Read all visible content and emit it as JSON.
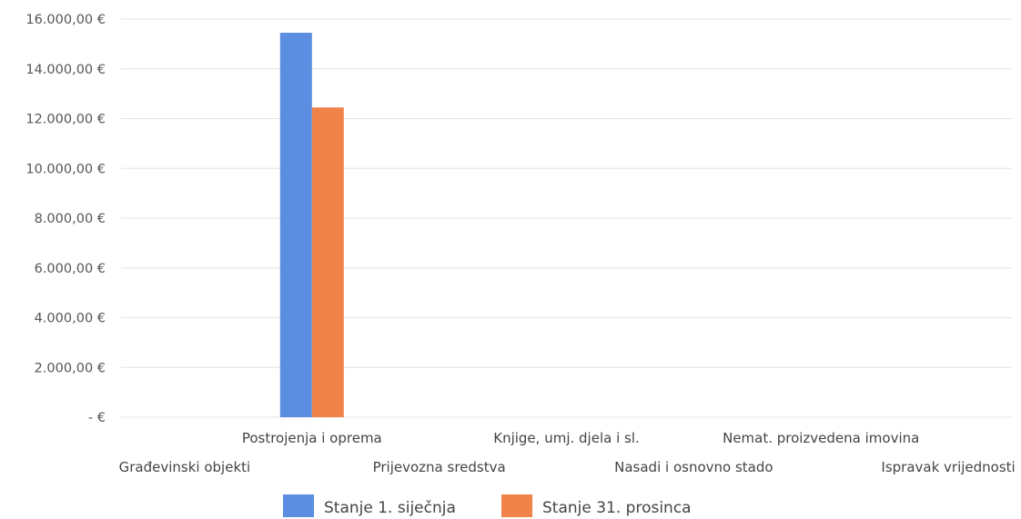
{
  "chart_data": {
    "type": "bar",
    "title": "",
    "xlabel": "",
    "ylabel": "",
    "ylim": [
      0,
      16000
    ],
    "grid": true,
    "legend_position": "bottom",
    "y_ticks": [
      0,
      2000,
      4000,
      6000,
      8000,
      10000,
      12000,
      14000,
      16000
    ],
    "y_tick_labels": [
      "-  €",
      "2.000,00 €",
      "4.000,00 €",
      "6.000,00 €",
      "8.000,00 €",
      "10.000,00 €",
      "12.000,00 €",
      "14.000,00 €",
      "16.000,00 €"
    ],
    "categories": [
      "Građevinski objekti",
      "Postrojenja i oprema",
      "Prijevozna sredstva",
      "Knjige, umj. djela i sl.",
      "Nasadi i osnovno stado",
      "Nemat. proizvedena imovina",
      "Ispravak vrijednosti"
    ],
    "series": [
      {
        "name": "Stanje 1. siječnja",
        "color": "#5b8ee0",
        "values": [
          0,
          15450,
          0,
          0,
          0,
          0,
          0
        ]
      },
      {
        "name": "Stanje 31. prosinca",
        "color": "#f0834a",
        "values": [
          0,
          12450,
          0,
          0,
          0,
          0,
          0
        ]
      }
    ]
  }
}
